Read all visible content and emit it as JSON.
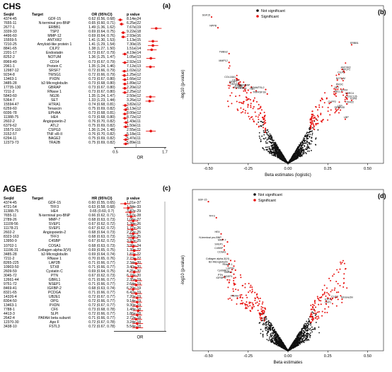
{
  "chart_data": [
    {
      "type": "forest",
      "panel": "a",
      "section_title": "CHS",
      "columns": [
        "SeqId",
        "Target",
        "OR (95%CI)",
        "p value"
      ],
      "xlabel": "OR",
      "xticks": [
        "0.5",
        "1.7"
      ],
      "xlim": [
        0.5,
        1.7
      ],
      "rows": [
        {
          "seqid": "4374-45",
          "target": "GDF-15",
          "ci": "0.62 (0.56, 0.68)",
          "p": "8.14e-24",
          "est": 0.62,
          "lo": 0.56,
          "hi": 0.68
        },
        {
          "seqid": "7655-11",
          "target": "N-terminal pro-BNP",
          "ci": "0.65 (0.60, 0.71)",
          "p": "6.25e-22",
          "est": 0.65,
          "lo": 0.6,
          "hi": 0.71
        },
        {
          "seqid": "2677-1",
          "target": "ERBB1",
          "ci": "1.49 (1.36, 1.62)",
          "p": "7.67e-19",
          "est": 1.49,
          "lo": 1.36,
          "hi": 1.62
        },
        {
          "seqid": "3339-33",
          "target": "TSP2",
          "ci": "0.69 (0.64, 0.75)",
          "p": "9.22e-18",
          "est": 0.69,
          "lo": 0.64,
          "hi": 0.75
        },
        {
          "seqid": "4496-60",
          "target": "MMP-12",
          "ci": "0.69 (0.64, 0.76)",
          "p": "2.93e-16",
          "est": 0.69,
          "lo": 0.64,
          "hi": 0.76
        },
        {
          "seqid": "15559-5",
          "target": "ANTXR2",
          "ci": "1.41 (1.30, 1.53)",
          "p": "1.13e-15",
          "est": 1.41,
          "lo": 1.3,
          "hi": 1.53
        },
        {
          "seqid": "7210-25",
          "target": "Amyloid-like protein 1",
          "ci": "1.41 (1.29, 1.54)",
          "p": "7.30e-15",
          "est": 1.41,
          "lo": 1.29,
          "hi": 1.54
        },
        {
          "seqid": "8841-65",
          "target": "CILP2",
          "ci": "1.38 (1.27, 1.50)",
          "p": "1.51e-14",
          "est": 1.38,
          "lo": 1.27,
          "hi": 1.5
        },
        {
          "seqid": "2201-17",
          "target": "Endostatin",
          "ci": "0.73 (0.67, 0.79)",
          "p": "4.19e-14",
          "est": 0.73,
          "lo": 0.67,
          "hi": 0.79
        },
        {
          "seqid": "8252-2",
          "target": "NOTUM",
          "ci": "1.36 (1.25, 1.47)",
          "p": "1.05e-13",
          "est": 1.36,
          "lo": 1.25,
          "hi": 1.47
        },
        {
          "seqid": "8969-49",
          "target": "CD14",
          "ci": "0.73 (0.67, 0.79)",
          "p": "2.92e-13",
          "est": 0.73,
          "lo": 0.67,
          "hi": 0.79
        },
        {
          "seqid": "2961-1",
          "target": "Protein C",
          "ci": "1.35 (1.24, 1.46)",
          "p": "7.12e-13",
          "est": 1.35,
          "lo": 1.24,
          "hi": 1.46
        },
        {
          "seqid": "12987-12",
          "target": "SRSF7",
          "ci": "0.72 (0.66, 0.79)",
          "p": "1.02e-12",
          "est": 0.72,
          "lo": 0.66,
          "hi": 0.79
        },
        {
          "seqid": "9234-8",
          "target": "TWSG1",
          "ci": "0.72 (0.66, 0.79)",
          "p": "1.25e-12",
          "est": 0.72,
          "lo": 0.66,
          "hi": 0.79
        },
        {
          "seqid": "13463-1",
          "target": "PXDN",
          "ci": "0.73 (0.67, 0.80)",
          "p": "1.66e-12",
          "est": 0.73,
          "lo": 0.67,
          "hi": 0.8
        },
        {
          "seqid": "3485-28",
          "target": "b2-Microglobulin",
          "ci": "0.73 (0.68, 0.80)",
          "p": "1.89e-12",
          "est": 0.73,
          "lo": 0.68,
          "hi": 0.8
        },
        {
          "seqid": "17735-130",
          "target": "GBRAP",
          "ci": "0.73 (0.67, 0.80)",
          "p": "2.20e-12",
          "est": 0.73,
          "lo": 0.67,
          "hi": 0.8
        },
        {
          "seqid": "7211-2",
          "target": "RNase 1",
          "ci": "0.73 (0.67, 0.80)",
          "p": "2.25e-12",
          "est": 0.73,
          "lo": 0.67,
          "hi": 0.8
        },
        {
          "seqid": "5843-60",
          "target": "NG36",
          "ci": "1.35 (1.24, 1.47)",
          "p": "2.50e-12",
          "est": 1.35,
          "lo": 1.24,
          "hi": 1.47
        },
        {
          "seqid": "5364-7",
          "target": "SET",
          "ci": "1.33 (1.23, 1.44)",
          "p": "3.26e-12",
          "est": 1.33,
          "lo": 1.23,
          "hi": 1.44
        },
        {
          "seqid": "15594-47",
          "target": "HTRA1",
          "ci": "0.74 (0.68, 0.81)",
          "p": "3.82e-12",
          "est": 0.74,
          "lo": 0.68,
          "hi": 0.81
        },
        {
          "seqid": "6259-60",
          "target": "Tenascin",
          "ci": "0.75 (0.69, 0.82)",
          "p": "6.13e-12",
          "est": 0.75,
          "lo": 0.69,
          "hi": 0.82
        },
        {
          "seqid": "6036-78",
          "target": "EPHAA",
          "ci": "0.73 (0.68, 0.81)",
          "p": "8.00e-12",
          "est": 0.73,
          "lo": 0.68,
          "hi": 0.81
        },
        {
          "seqid": "11388-75",
          "target": "HE4",
          "ci": "0.73 (0.68, 0.80)",
          "p": "8.72e-12",
          "est": 0.73,
          "lo": 0.68,
          "hi": 0.8
        },
        {
          "seqid": "2602-2",
          "target": "Angiopoietin-2",
          "ci": "0.76 (0.70, 0.82)",
          "p": "1.43e-11",
          "est": 0.76,
          "lo": 0.7,
          "hi": 0.82
        },
        {
          "seqid": "6379-62",
          "target": "ATL2",
          "ci": "0.75 (0.69, 0.82)",
          "p": "1.50e-11",
          "est": 0.75,
          "lo": 0.69,
          "hi": 0.82
        },
        {
          "seqid": "15573-110",
          "target": "CSPG3",
          "ci": "1.36 (1.24, 1.48)",
          "p": "2.55e-11",
          "est": 1.36,
          "lo": 1.24,
          "hi": 1.48
        },
        {
          "seqid": "3152-57",
          "target": "TNF sR-II",
          "ci": "0.76 (0.70, 0.82)",
          "p": "5.18e-11",
          "est": 0.76,
          "lo": 0.7,
          "hi": 0.82
        },
        {
          "seqid": "6294-11",
          "target": "BAGE2",
          "ci": "0.75 (0.69, 0.82)",
          "p": "5.47e-11",
          "est": 0.75,
          "lo": 0.69,
          "hi": 0.82
        },
        {
          "seqid": "12373-73",
          "target": "TRA2B",
          "ci": "0.75 (0.69, 0.82)",
          "p": "5.89e-11",
          "est": 0.75,
          "lo": 0.69,
          "hi": 0.82
        }
      ]
    },
    {
      "type": "scatter",
      "panel": "b",
      "xlabel": "Beta estimates (logistic)",
      "ylabel": "-log10 (p-value)",
      "xticks": [
        "-0.50",
        "-0.25",
        "0.00",
        "0.25",
        "0.50"
      ],
      "xlim": [
        -0.6,
        0.6
      ],
      "legend": [
        "Not significant",
        "Significant"
      ],
      "legend_position": "top-center",
      "labels": [
        {
          "text": "SGF15",
          "x": -0.48,
          "y": 23.2
        },
        {
          "text": "NPPB",
          "x": -0.44,
          "y": 21.5
        },
        {
          "text": "ERBB1",
          "x": 0.4,
          "y": 18.8
        },
        {
          "text": "TMBS2",
          "x": -0.37,
          "y": 17.4
        },
        {
          "text": "MMP12",
          "x": -0.37,
          "y": 16.0
        },
        {
          "text": "ANTXR2",
          "x": 0.34,
          "y": 14.9
        },
        {
          "text": "APLP1",
          "x": 0.35,
          "y": 14.6
        },
        {
          "text": "CILP2",
          "x": 0.32,
          "y": 14.1
        },
        {
          "text": "NOTUM",
          "x": 0.31,
          "y": 13.2
        },
        {
          "text": "COL18A1",
          "x": -0.32,
          "y": 13.4
        },
        {
          "text": "CD14",
          "x": -0.3,
          "y": 12.9
        },
        {
          "text": "SRSF7",
          "x": -0.31,
          "y": 12.6
        },
        {
          "text": "TWSG1",
          "x": -0.3,
          "y": 12.3
        },
        {
          "text": "PXDN",
          "x": -0.28,
          "y": 12.0
        },
        {
          "text": "GABARAP",
          "x": -0.23,
          "y": 12.1
        },
        {
          "text": "HTRA1",
          "x": -0.25,
          "y": 11.6
        },
        {
          "text": "RNASE1",
          "x": -0.27,
          "y": 11.7
        },
        {
          "text": "TNC",
          "x": -0.2,
          "y": 11.5
        },
        {
          "text": "ADAMTSL2",
          "x": -0.14,
          "y": 11.7
        },
        {
          "text": "TNFRSF1B",
          "x": -0.13,
          "y": 11.0
        },
        {
          "text": "PROC",
          "x": 0.31,
          "y": 12.2
        },
        {
          "text": "SET",
          "x": 0.3,
          "y": 11.7
        },
        {
          "text": "NELL1",
          "x": 0.3,
          "y": 11.1
        },
        {
          "text": "SOX4",
          "x": 0.34,
          "y": 11.3
        },
        {
          "text": "LRRC4",
          "x": 0.37,
          "y": 10.8
        },
        {
          "text": "CCDC126",
          "x": 0.37,
          "y": 10.3
        },
        {
          "text": "FGF8",
          "x": 0.4,
          "y": 10.0
        },
        {
          "text": "CLPP2",
          "x": 0.26,
          "y": 9.5
        },
        {
          "text": "LEP",
          "x": 0.32,
          "y": 8.8
        },
        {
          "text": "LBP",
          "x": 0.36,
          "y": 7.0
        },
        {
          "text": "SEMA3D",
          "x": 0.3,
          "y": 8.6
        },
        {
          "text": "CDH22",
          "x": 0.37,
          "y": 9.4
        }
      ],
      "point_counts": {
        "not_significant": 1250,
        "significant": 210
      }
    },
    {
      "type": "forest",
      "panel": "c",
      "section_title": "AGES",
      "columns": [
        "SeqId",
        "Target",
        "HR (95%CI)",
        "p value"
      ],
      "xlabel": "OR",
      "xlim": [
        0.5,
        1.0
      ],
      "rows": [
        {
          "seqid": "4374-45",
          "target": "GDF-15",
          "ci": "0.60 (0.55, 0.65)",
          "p": "1.01e-37",
          "est": 0.6,
          "lo": 0.55,
          "hi": 0.65
        },
        {
          "seqid": "4721-54",
          "target": "TFF3",
          "ci": "0.63 (0.58, 0.68)",
          "p": "1.84e-33",
          "est": 0.63,
          "lo": 0.58,
          "hi": 0.68
        },
        {
          "seqid": "11388-75",
          "target": "HE4",
          "ci": "0.65 (0.60, 0.7)",
          "p": "3.82e-29",
          "est": 0.65,
          "lo": 0.6,
          "hi": 0.7
        },
        {
          "seqid": "7655-11",
          "target": "N-terminal pro-BNP",
          "ci": "0.66 (0.62, 0.71)",
          "p": "5.67e-28",
          "est": 0.66,
          "lo": 0.62,
          "hi": 0.71
        },
        {
          "seqid": "2789-26",
          "target": "MMP-7",
          "ci": "0.68 (0.63, 0.73)",
          "p": "1.06e-27",
          "est": 0.68,
          "lo": 0.63,
          "hi": 0.73
        },
        {
          "seqid": "11109-56",
          "target": "SVEP1",
          "ci": "0.67 (0.62, 0.72)",
          "p": "1.39e-26",
          "est": 0.67,
          "lo": 0.62,
          "hi": 0.72
        },
        {
          "seqid": "11178-21",
          "target": "SVEP1",
          "ci": "0.67 (0.62, 0.72)",
          "p": "1.77e-26",
          "est": 0.67,
          "lo": 0.62,
          "hi": 0.72
        },
        {
          "seqid": "2602-2",
          "target": "Angiopoietin-2",
          "ci": "0.68 (0.64, 0.73)",
          "p": "2.22e-25",
          "est": 0.68,
          "lo": 0.64,
          "hi": 0.73
        },
        {
          "seqid": "8323-163",
          "target": "TFF3",
          "ci": "0.68 (0.63, 0.73)",
          "p": "3.08e-25",
          "est": 0.68,
          "lo": 0.63,
          "hi": 0.73
        },
        {
          "seqid": "13950-9",
          "target": "C4SBP",
          "ci": "0.67 (0.62, 0.72)",
          "p": "3.92e-25",
          "est": 0.67,
          "lo": 0.62,
          "hi": 0.72
        },
        {
          "seqid": "10702-1",
          "target": "COSA1",
          "ci": "0.68 (0.63, 0.73)",
          "p": "3.99e-24",
          "est": 0.68,
          "lo": 0.63,
          "hi": 0.73
        },
        {
          "seqid": "11196-31",
          "target": "Collagen alpha-3(VI)",
          "ci": "0.69 (0.65, 0.75)",
          "p": "1.39e-22",
          "est": 0.69,
          "lo": 0.65,
          "hi": 0.75
        },
        {
          "seqid": "3485-28",
          "target": "b2-Microglobulin",
          "ci": "0.69 (0.64, 0.74)",
          "p": "1.87e-22",
          "est": 0.69,
          "lo": 0.64,
          "hi": 0.74
        },
        {
          "seqid": "7211-2",
          "target": "RNase 1",
          "ci": "0.70 (0.65, 0.76)",
          "p": "2.23e-22",
          "est": 0.7,
          "lo": 0.65,
          "hi": 0.76
        },
        {
          "seqid": "8265-225",
          "target": "LAP2B",
          "ci": "0.71 (0.66, 0.77)",
          "p": "2.34e-20",
          "est": 0.71,
          "lo": 0.66,
          "hi": 0.77
        },
        {
          "seqid": "10903-50",
          "target": "STX8",
          "ci": "0.71 (0.66, 0.77)",
          "p": "3.40e-20",
          "est": 0.71,
          "lo": 0.66,
          "hi": 0.77
        },
        {
          "seqid": "2609-59",
          "target": "Cystatin C",
          "ci": "0.69 (0.64, 0.75)",
          "p": "4.25e-20",
          "est": 0.69,
          "lo": 0.64,
          "hi": 0.75
        },
        {
          "seqid": "3045-72",
          "target": "PTN",
          "ci": "0.67 (0.62, 0.73)",
          "p": "6.73e-20",
          "est": 0.67,
          "lo": 0.62,
          "hi": 0.73
        },
        {
          "seqid": "12661-44",
          "target": "GBRL1",
          "ci": "0.71 (0.66, 0.77)",
          "p": "2.35e-19",
          "est": 0.71,
          "lo": 0.66,
          "hi": 0.77
        },
        {
          "seqid": "9751-72",
          "target": "NSEP1",
          "ci": "0.71 (0.66, 0.77)",
          "p": "2.64e-19",
          "est": 0.71,
          "lo": 0.66,
          "hi": 0.77
        },
        {
          "seqid": "8469-41",
          "target": "IGFBP-2",
          "ci": "0.68 (0.63, 0.74)",
          "p": "6.20e-19",
          "est": 0.68,
          "lo": 0.63,
          "hi": 0.74
        },
        {
          "seqid": "8321-65",
          "target": "PCDGA",
          "ci": "0.71 (0.66, 0.77)",
          "p": "6.42e-19",
          "est": 0.71,
          "lo": 0.66,
          "hi": 0.77
        },
        {
          "seqid": "14326-4",
          "target": "UB2E1",
          "ci": "0.72 (0.67, 0.77)",
          "p": "7.20e-19",
          "est": 0.72,
          "lo": 0.67,
          "hi": 0.77
        },
        {
          "seqid": "8304-50",
          "target": "OPG",
          "ci": "0.72 (0.66, 0.77)",
          "p": "9.14e-19",
          "est": 0.72,
          "lo": 0.66,
          "hi": 0.77
        },
        {
          "seqid": "13463-1",
          "target": "PXDN",
          "ci": "0.72 (0.67, 0.77)",
          "p": "9.30e-19",
          "est": 0.72,
          "lo": 0.67,
          "hi": 0.77
        },
        {
          "seqid": "7788-1",
          "target": "CF6",
          "ci": "0.73 (0.68, 0.78)",
          "p": "1.48e-18",
          "est": 0.73,
          "lo": 0.68,
          "hi": 0.78
        },
        {
          "seqid": "4413-3",
          "target": "SLPI",
          "ci": "0.72 (0.66, 0.77)",
          "p": "1.86e-18",
          "est": 0.72,
          "lo": 0.66,
          "hi": 0.77
        },
        {
          "seqid": "2642-4",
          "target": "PAFAH beta subunit",
          "ci": "0.71 (0.66, 0.77)",
          "p": "2.72e-18",
          "est": 0.71,
          "lo": 0.66,
          "hi": 0.77
        },
        {
          "seqid": "12370-30",
          "target": "Apo F",
          "ci": "0.72 (0.67, 0.78)",
          "p": "3.24e-18",
          "est": 0.72,
          "lo": 0.67,
          "hi": 0.78
        },
        {
          "seqid": "3438-10",
          "target": "FSTL3",
          "ci": "0.72 (0.67, 0.78)",
          "p": "5.54e-18",
          "est": 0.72,
          "lo": 0.67,
          "hi": 0.78
        }
      ]
    },
    {
      "type": "scatter",
      "panel": "d",
      "xlabel": "Beta estimates",
      "ylabel": "-log10 (p-value)",
      "xticks": [
        "-0.50",
        "-0.25",
        "0.00",
        "0.25",
        "0.50"
      ],
      "xlim": [
        -0.6,
        0.6
      ],
      "legend": [
        "Not significant",
        "Significant"
      ],
      "legend_position": "top-center",
      "labels": [
        {
          "text": "GDF-15",
          "x": -0.5,
          "y": 37.0
        },
        {
          "text": "TFF3",
          "x": -0.45,
          "y": 33.0
        },
        {
          "text": "HE4",
          "x": -0.42,
          "y": 29.0
        },
        {
          "text": "N-terminal pro-BNP",
          "x": -0.41,
          "y": 27.6
        },
        {
          "text": "MMP-7",
          "x": -0.38,
          "y": 27.0
        },
        {
          "text": "SVEP1",
          "x": -0.4,
          "y": 26.0
        },
        {
          "text": "C4SBP",
          "x": -0.4,
          "y": 25.0
        },
        {
          "text": "COSA1",
          "x": -0.38,
          "y": 24.0
        },
        {
          "text": "Collagen alpha-3(VI)",
          "x": -0.36,
          "y": 22.4
        },
        {
          "text": "B2-Microglobulin",
          "x": -0.37,
          "y": 21.6
        },
        {
          "text": "RNase 1",
          "x": -0.34,
          "y": 21.0
        },
        {
          "text": "LAP2B",
          "x": -0.33,
          "y": 20.0
        },
        {
          "text": "Cystatin C",
          "x": -0.36,
          "y": 19.5
        },
        {
          "text": "GBRL1",
          "x": -0.34,
          "y": 19.0
        },
        {
          "text": "PTN",
          "x": -0.4,
          "y": 18.3
        },
        {
          "text": "NSEP1",
          "x": -0.34,
          "y": 18.0
        },
        {
          "text": "IGFBP-2",
          "x": -0.38,
          "y": 17.6
        },
        {
          "text": "PAFAH",
          "x": -0.3,
          "y": 13.2
        },
        {
          "text": "CLIC2",
          "x": 0.28,
          "y": 13.0
        },
        {
          "text": "Tetranectin",
          "x": 0.34,
          "y": 12.8
        },
        {
          "text": "E2C4",
          "x": 0.24,
          "y": 12.3
        },
        {
          "text": "LRP1",
          "x": 0.24,
          "y": 11.6
        }
      ],
      "point_counts": {
        "not_significant": 1400,
        "significant": 230
      }
    }
  ],
  "colors": {
    "significant": "#e8110e",
    "not_significant": "#111111",
    "forest_marker": "#e8110e"
  }
}
